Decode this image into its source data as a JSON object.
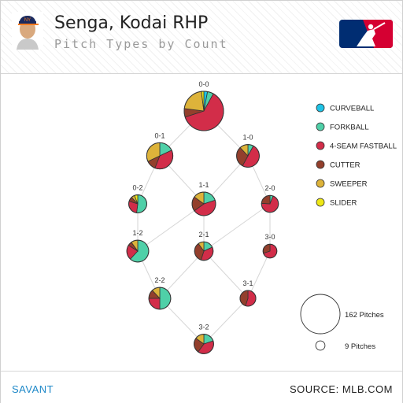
{
  "header": {
    "title": "Senga, Kodai RHP",
    "subtitle": "Pitch Types by Count",
    "logo_icon": "mlb-logo-icon",
    "avatar_icon": "player-headshot-icon"
  },
  "footer": {
    "left": "SAVANT",
    "right": "SOURCE: MLB.COM"
  },
  "chart_data": {
    "type": "pie",
    "title": "Pitch Types by Count",
    "legend": {
      "placement": "right",
      "items": [
        {
          "name": "CURVEBALL",
          "color": "#1ec3e6"
        },
        {
          "name": "FORKBALL",
          "color": "#4fd0a8"
        },
        {
          "name": "4-SEAM FASTBALL",
          "color": "#d22d49"
        },
        {
          "name": "CUTTER",
          "color": "#933f2c"
        },
        {
          "name": "SWEEPER",
          "color": "#ddb33a"
        },
        {
          "name": "SLIDER",
          "color": "#eee716"
        }
      ]
    },
    "size_legend": [
      {
        "label": "162 Pitches",
        "pitches": 162
      },
      {
        "label": "9 Pitches",
        "pitches": 9
      }
    ],
    "counts": [
      {
        "count": "0-0",
        "pitches": 162,
        "mix": {
          "CURVEBALL": 3,
          "FORKBALL": 5,
          "4-SEAM FASTBALL": 62,
          "CUTTER": 7,
          "SWEEPER": 21,
          "SLIDER": 2
        }
      },
      {
        "count": "0-1",
        "pitches": 72,
        "mix": {
          "FORKBALL": 18,
          "4-SEAM FASTBALL": 38,
          "CUTTER": 12,
          "SWEEPER": 32
        }
      },
      {
        "count": "1-0",
        "pitches": 54,
        "mix": {
          "FORKBALL": 8,
          "4-SEAM FASTBALL": 50,
          "CUTTER": 30,
          "SWEEPER": 12
        }
      },
      {
        "count": "0-2",
        "pitches": 34,
        "mix": {
          "FORKBALL": 52,
          "4-SEAM FASTBALL": 28,
          "CUTTER": 8,
          "SWEEPER": 6,
          "SLIDER": 6
        }
      },
      {
        "count": "1-1",
        "pitches": 58,
        "mix": {
          "FORKBALL": 20,
          "4-SEAM FASTBALL": 45,
          "CUTTER": 20,
          "SWEEPER": 15
        }
      },
      {
        "count": "2-0",
        "pitches": 30,
        "mix": {
          "FORKBALL": 6,
          "4-SEAM FASTBALL": 70,
          "CUTTER": 24
        }
      },
      {
        "count": "1-2",
        "pitches": 50,
        "mix": {
          "FORKBALL": 62,
          "4-SEAM FASTBALL": 22,
          "CUTTER": 6,
          "SWEEPER": 10
        }
      },
      {
        "count": "2-1",
        "pitches": 36,
        "mix": {
          "FORKBALL": 18,
          "4-SEAM FASTBALL": 37,
          "CUTTER": 35,
          "SWEEPER": 10
        }
      },
      {
        "count": "3-0",
        "pitches": 20,
        "mix": {
          "4-SEAM FASTBALL": 70,
          "CUTTER": 30
        }
      },
      {
        "count": "2-2",
        "pitches": 50,
        "mix": {
          "FORKBALL": 50,
          "4-SEAM FASTBALL": 25,
          "CUTTER": 13,
          "SWEEPER": 12
        }
      },
      {
        "count": "3-1",
        "pitches": 26,
        "mix": {
          "4-SEAM FASTBALL": 55,
          "CUTTER": 45
        }
      },
      {
        "count": "3-2",
        "pitches": 40,
        "mix": {
          "FORKBALL": 20,
          "4-SEAM FASTBALL": 40,
          "CUTTER": 25,
          "SWEEPER": 15
        }
      }
    ],
    "grid": false
  }
}
